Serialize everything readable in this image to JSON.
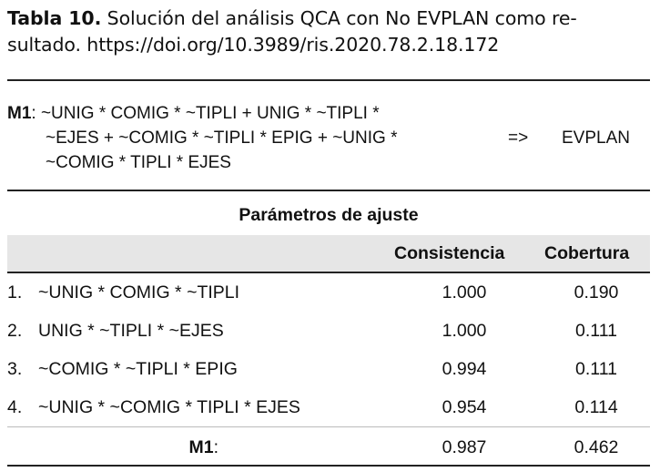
{
  "caption": {
    "label": "Tabla 10.",
    "line1_rest": " Solución del análisis QCA con No EVPLAN como re-",
    "line2": "sultado. https://doi.org/10.3989/ris.2020.78.2.18.172"
  },
  "formula": {
    "model": "M1",
    "colon": ":",
    "line1": " ~UNIG * COMIG * ~TIPLI + UNIG * ~TIPLI *",
    "line2": "~EJES + ~COMIG * ~TIPLI * EPIG + ~UNIG *",
    "line3": "~COMIG * TIPLI * EJES",
    "arrow": "=>",
    "outcome": "EVPLAN"
  },
  "table": {
    "title": "Parámetros de ajuste",
    "headers": {
      "consistency": "Consistencia",
      "coverage": "Cobertura"
    },
    "rows": [
      {
        "num": "1.",
        "config": "~UNIG * COMIG * ~TIPLI",
        "consistency": "1.000",
        "coverage": "0.190"
      },
      {
        "num": "2.",
        "config": "UNIG * ~TIPLI * ~EJES",
        "consistency": "1.000",
        "coverage": "0.111"
      },
      {
        "num": "3.",
        "config": "~COMIG * ~TIPLI * EPIG",
        "consistency": "0.994",
        "coverage": "0.111"
      },
      {
        "num": "4.",
        "config": "~UNIG * ~COMIG * TIPLI * EJES",
        "consistency": "0.954",
        "coverage": "0.114"
      }
    ],
    "summary": {
      "label": "M1",
      "colon": ":",
      "consistency": "0.987",
      "coverage": "0.462"
    }
  }
}
